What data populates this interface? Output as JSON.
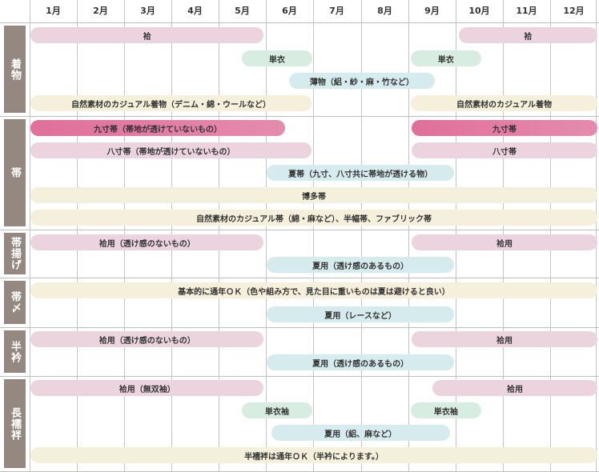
{
  "months": [
    "1月",
    "2月",
    "3月",
    "4月",
    "5月",
    "6月",
    "7月",
    "8月",
    "9月",
    "10月",
    "11月",
    "12月"
  ],
  "colors": {
    "pink": "#ecd4df",
    "darkpink": "#e06f9b",
    "green": "#d8ede2",
    "blue": "#d6ebee",
    "cream": "#f5f0db",
    "label_bg": "#958880"
  },
  "sections": [
    {
      "label": "着物",
      "bars": [
        {
          "label": "袷",
          "from": 1.0,
          "to": 5.95,
          "row": 0,
          "style": "pink"
        },
        {
          "label": "袷",
          "from": 10.05,
          "to": 13.0,
          "row": 0,
          "style": "pink"
        },
        {
          "label": "単衣",
          "from": 5.47,
          "to": 6.97,
          "row": 1,
          "style": "green"
        },
        {
          "label": "単衣",
          "from": 9.04,
          "to": 10.54,
          "row": 1,
          "style": "green"
        },
        {
          "label": "薄物（絽・紗・麻・竹など）",
          "from": 6.47,
          "to": 9.56,
          "row": 2,
          "style": "blue"
        },
        {
          "label": "自然素材のカジュアル着物（デニム・綿・ウールなど）",
          "from": 1.0,
          "to": 6.96,
          "row": 3,
          "style": "cream"
        },
        {
          "label": "自然素材のカジュアル着物",
          "from": 9.04,
          "to": 13.0,
          "row": 3,
          "style": "cream"
        }
      ]
    },
    {
      "label": "帯",
      "bars": [
        {
          "label": "九寸帯（帯地が透けていないもの）",
          "from": 1.0,
          "to": 6.4,
          "row": 0,
          "style": "darkpink"
        },
        {
          "label": "九寸帯",
          "from": 9.06,
          "to": 13.0,
          "row": 0,
          "style": "darkpink"
        },
        {
          "label": "八寸帯（帯地が透けていないもの）",
          "from": 1.0,
          "to": 6.96,
          "row": 1,
          "style": "pink"
        },
        {
          "label": "八寸帯",
          "from": 9.06,
          "to": 13.0,
          "row": 1,
          "style": "pink"
        },
        {
          "label": "夏帯（九寸、八寸共に帯地が透ける物）",
          "from": 6.0,
          "to": 9.97,
          "row": 2,
          "style": "blue"
        },
        {
          "label": "博多帯",
          "from": 1.0,
          "to": 13.0,
          "row": 3,
          "style": "cream"
        },
        {
          "label": "自然素材のカジュアル帯（綿・麻など）、半幅帯、ファブリック帯",
          "from": 1.0,
          "to": 13.0,
          "row": 4,
          "style": "cream"
        }
      ]
    },
    {
      "label": "帯揚げ",
      "bars": [
        {
          "label": "袷用（透け感のないもの）",
          "from": 1.0,
          "to": 5.95,
          "row": 0,
          "style": "pink"
        },
        {
          "label": "袷用",
          "from": 9.06,
          "to": 13.0,
          "row": 0,
          "style": "pink"
        },
        {
          "label": "夏用（透け感のあるもの）",
          "from": 6.0,
          "to": 9.97,
          "row": 1,
          "style": "blue"
        }
      ]
    },
    {
      "label": "帯〆",
      "bars": [
        {
          "label": "基本的に通年ＯＫ（色や組み方で、見た目に重いものは夏は避けると良い）",
          "from": 1.0,
          "to": 13.0,
          "row": 0,
          "style": "cream"
        },
        {
          "label": "夏用（レースなど）",
          "from": 6.0,
          "to": 9.97,
          "row": 1,
          "style": "blue"
        }
      ]
    },
    {
      "label": "半衿",
      "bars": [
        {
          "label": "袷用（透け感のないもの）",
          "from": 1.0,
          "to": 5.95,
          "row": 0,
          "style": "pink"
        },
        {
          "label": "袷用",
          "from": 9.06,
          "to": 13.0,
          "row": 0,
          "style": "pink"
        },
        {
          "label": "夏用（透け感のあるもの）",
          "from": 6.0,
          "to": 9.97,
          "row": 1,
          "style": "blue"
        }
      ]
    },
    {
      "label": "長襦袢",
      "bars": [
        {
          "label": "袷用（無双袖）",
          "from": 1.0,
          "to": 5.95,
          "row": 0,
          "style": "pink"
        },
        {
          "label": "袷用",
          "from": 9.5,
          "to": 13.0,
          "row": 0,
          "style": "pink"
        },
        {
          "label": "単衣袖",
          "from": 5.47,
          "to": 6.97,
          "row": 1,
          "style": "green"
        },
        {
          "label": "単衣袖",
          "from": 9.04,
          "to": 10.54,
          "row": 1,
          "style": "green"
        },
        {
          "label": "夏用（絽、麻など）",
          "from": 6.09,
          "to": 9.88,
          "row": 2,
          "style": "blue"
        },
        {
          "label": "半襦袢は通年ＯＫ（半衿によります。）",
          "from": 1.0,
          "to": 13.0,
          "row": 3,
          "style": "cream"
        }
      ]
    }
  ]
}
